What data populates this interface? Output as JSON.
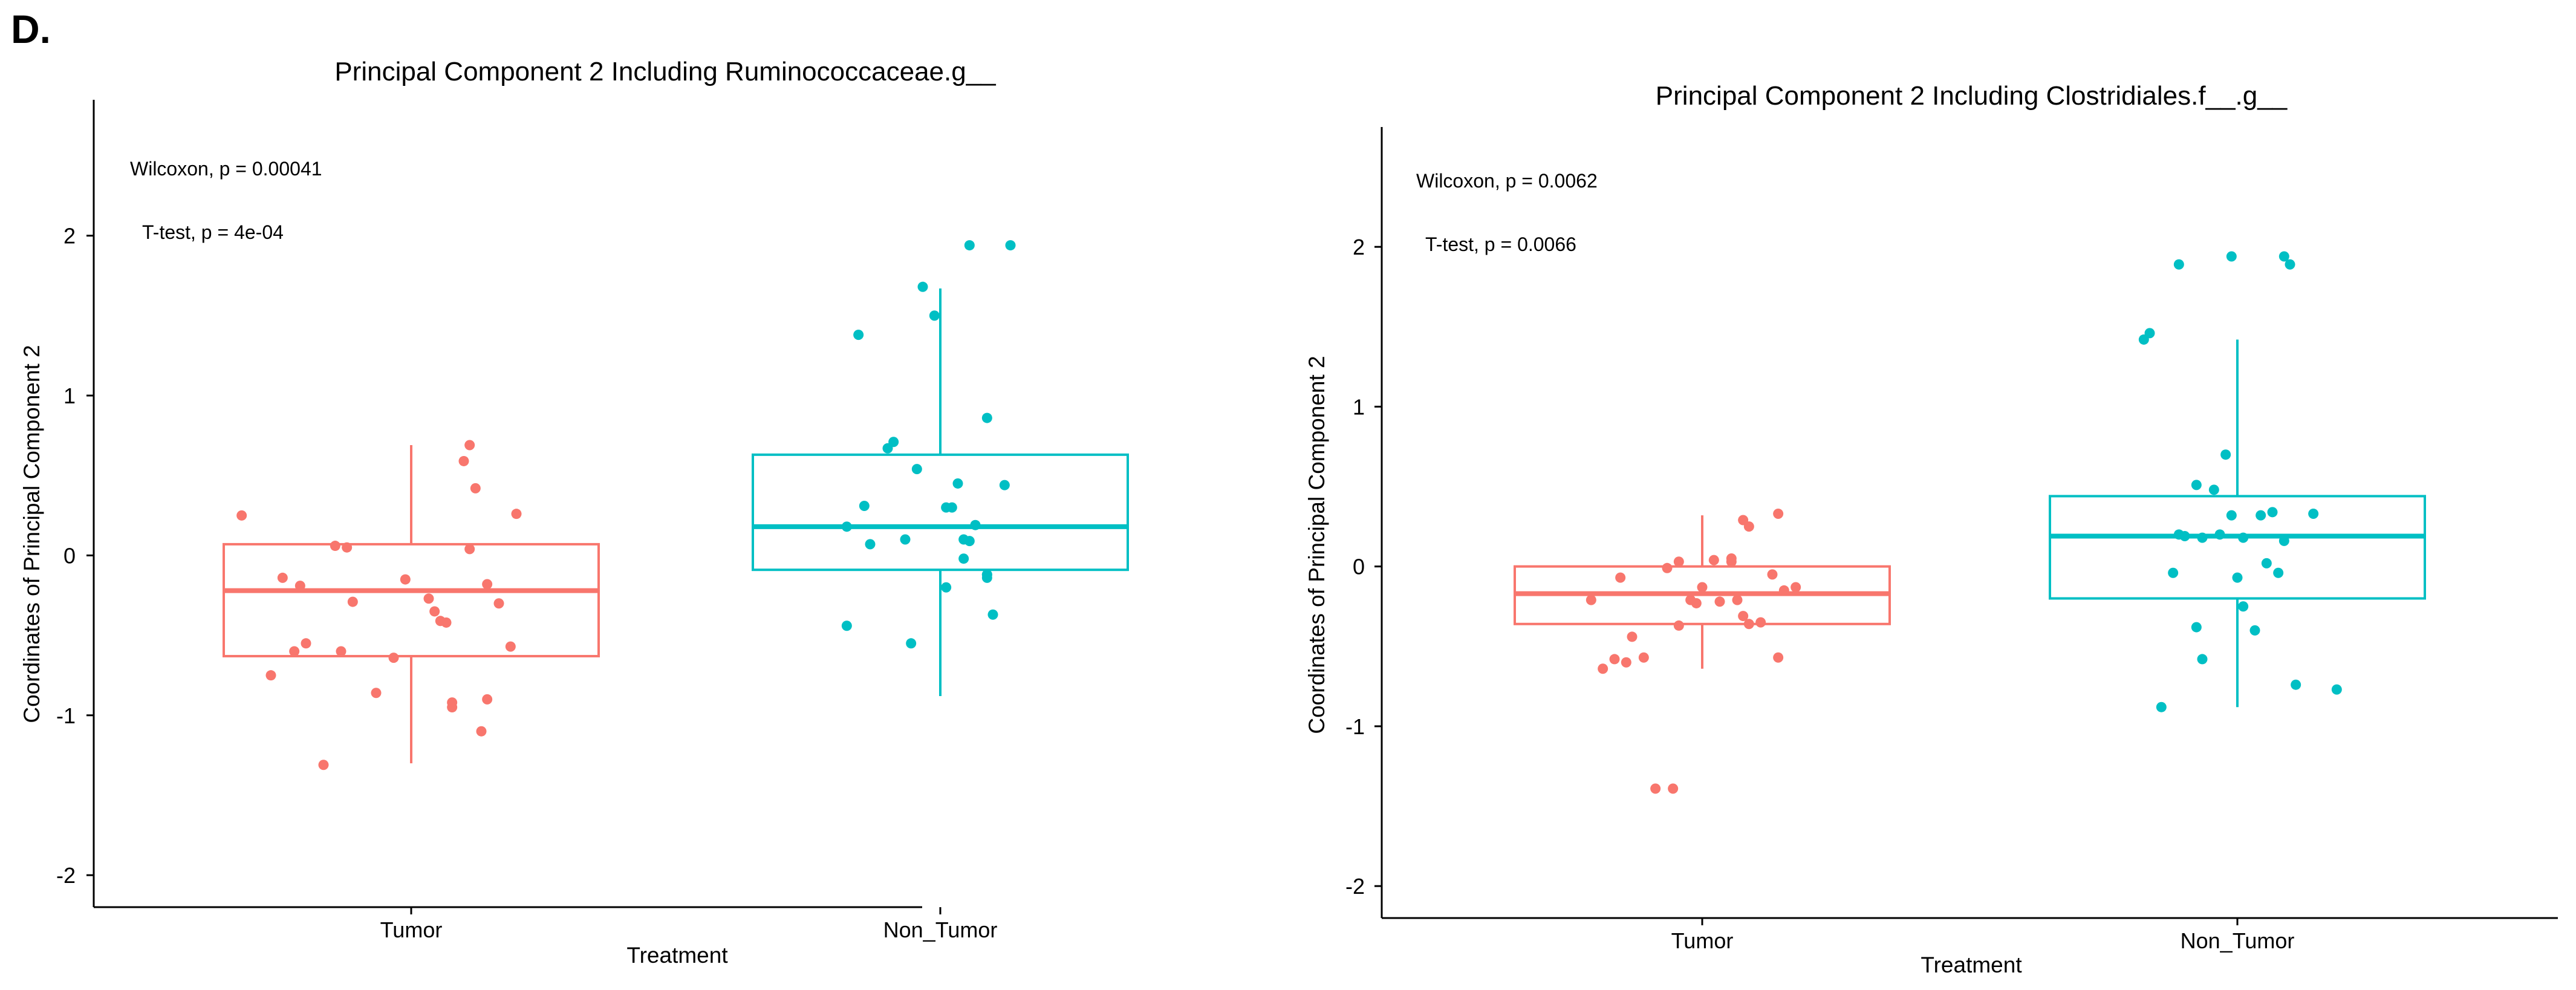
{
  "figure": {
    "panel_label": "D."
  },
  "colors": {
    "tumor": "#F8766D",
    "non_tumor": "#00BFC4",
    "axis": "#000000"
  },
  "chart_data": [
    {
      "type": "box",
      "title": "Principal Component 2 Including Ruminococcaceae.g__",
      "xlabel": "Treatment",
      "ylabel": "Coordinates of Principal Component 2",
      "ylim": [
        -2.2,
        2.85
      ],
      "yticks": [
        2,
        1,
        0,
        -1,
        -2
      ],
      "ytick_labels": [
        "2",
        "1",
        "0",
        "-1",
        "-2"
      ],
      "categories": [
        "Tumor",
        "Non_Tumor"
      ],
      "annotations": [
        "Wilcoxon, p = 0.00041",
        "T-test, p = 4e-04"
      ],
      "boxes": [
        {
          "name": "Tumor",
          "color": "#F8766D",
          "q1": -0.63,
          "median": -0.22,
          "q3": 0.07,
          "whisker_low": -1.3,
          "whisker_high": 0.69
        },
        {
          "name": "Non_Tumor",
          "color": "#00BFC4",
          "q1": -0.09,
          "median": 0.18,
          "q3": 0.63,
          "whisker_low": -0.88,
          "whisker_high": 1.67
        }
      ],
      "points": [
        {
          "group": "Tumor",
          "jitter": [
            -0.29,
            -0.22,
            0.18,
            0.13,
            -0.19,
            -0.18,
            -0.2,
            -0.24,
            -0.12,
            0.07,
            0.12,
            0.1,
            -0.03,
            0.13,
            -0.06,
            0.07,
            0.15,
            -0.15,
            0.17,
            0.05,
            -0.13,
            0.06,
            0.04,
            0.03,
            -0.1,
            -0.01,
            -0.11,
            0.1,
            0.09,
            0.11
          ],
          "y": [
            0.25,
            -0.14,
            0.26,
            -0.18,
            -0.19,
            -0.55,
            -0.6,
            -0.75,
            -0.6,
            -0.95,
            -1.1,
            0.04,
            -0.64,
            -0.9,
            -0.86,
            -0.92,
            -0.3,
            -1.31,
            -0.57,
            -0.41,
            0.06,
            -0.42,
            -0.35,
            -0.27,
            -0.29,
            -0.15,
            0.05,
            0.69,
            0.59,
            0.42
          ]
        },
        {
          "group": "Non_Tumor",
          "jitter": [
            0.05,
            0.12,
            0.08,
            0.03,
            -0.14,
            0.02,
            0.01,
            -0.06,
            -0.05,
            -0.16,
            -0.16,
            -0.04,
            0.05,
            -0.12,
            0.09,
            0.08,
            0.06,
            -0.08,
            -0.13,
            0.08,
            0.08,
            0.11,
            0.01,
            -0.09,
            0.04,
            0.04,
            -0.01,
            -0.03
          ],
          "y": [
            1.94,
            1.94,
            0.86,
            0.45,
            1.38,
            0.3,
            0.3,
            0.1,
            -0.55,
            0.18,
            -0.44,
            0.54,
            0.09,
            0.07,
            -0.37,
            -0.14,
            0.19,
            0.71,
            0.31,
            -0.12,
            -0.12,
            0.44,
            -0.2,
            0.67,
            -0.02,
            0.1,
            1.5,
            1.68
          ]
        }
      ]
    },
    {
      "type": "box",
      "title": "Principal Component 2 Including Clostridiales.f__.g__",
      "xlabel": "Treatment",
      "ylabel": "Coordinates of Principal Component 2",
      "ylim": [
        -2.2,
        2.75
      ],
      "yticks": [
        2,
        1,
        0,
        -1,
        -2
      ],
      "ytick_labels": [
        "2",
        "1",
        "0",
        "-1",
        "-2"
      ],
      "categories": [
        "Tumor",
        "Non_Tumor"
      ],
      "annotations": [
        "Wilcoxon, p = 0.0062",
        "T-test, p = 0.0066"
      ],
      "boxes": [
        {
          "name": "Tumor",
          "color": "#F8766D",
          "q1": -0.36,
          "median": -0.17,
          "q3": 0.0,
          "whisker_low": -0.64,
          "whisker_high": 0.32
        },
        {
          "name": "Non_Tumor",
          "color": "#00BFC4",
          "q1": -0.2,
          "median": 0.19,
          "q3": 0.44,
          "whisker_low": -0.88,
          "whisker_high": 1.42
        }
      ],
      "points": [
        {
          "group": "Tumor",
          "jitter": [
            -0.17,
            -0.14,
            -0.19,
            -0.15,
            -0.12,
            -0.13,
            -0.1,
            -0.06,
            -0.04,
            0.05,
            0.07,
            0.08,
            0.13,
            0.12,
            0.16,
            0.13,
            0.1,
            0.0,
            0.02,
            -0.02,
            -0.05,
            -0.08,
            -0.01,
            0.06,
            0.08,
            0.07,
            0.05,
            0.14,
            0.03,
            -0.04
          ],
          "y": [
            -0.64,
            -0.07,
            -0.21,
            -0.58,
            -0.44,
            -0.6,
            -0.57,
            -0.01,
            -0.37,
            0.03,
            0.29,
            0.25,
            0.33,
            -0.05,
            -0.13,
            -0.57,
            -0.35,
            -0.13,
            0.04,
            -0.21,
            -1.39,
            -1.39,
            -0.23,
            -0.21,
            -0.36,
            -0.31,
            0.05,
            -0.15,
            -0.22,
            0.03
          ]
        },
        {
          "group": "Non_Tumor",
          "jitter": [
            -0.1,
            -0.16,
            -0.15,
            0.08,
            0.09,
            -0.01,
            0.06,
            0.04,
            0.0,
            -0.04,
            -0.07,
            -0.02,
            0.08,
            0.05,
            0.13,
            0.01,
            0.01,
            -0.11,
            -0.1,
            -0.09,
            -0.13,
            -0.07,
            -0.06,
            0.07,
            -0.06,
            -0.03,
            -0.01,
            0.03,
            0.17,
            0.1
          ],
          "y": [
            1.89,
            1.42,
            1.46,
            1.94,
            1.89,
            1.94,
            0.34,
            0.32,
            -0.07,
            0.48,
            0.51,
            0.7,
            0.16,
            0.02,
            0.33,
            0.18,
            -0.25,
            -0.04,
            0.2,
            0.19,
            -0.88,
            -0.38,
            -0.58,
            -0.04,
            0.18,
            0.2,
            0.32,
            -0.4,
            -0.77,
            -0.74
          ]
        }
      ]
    }
  ]
}
